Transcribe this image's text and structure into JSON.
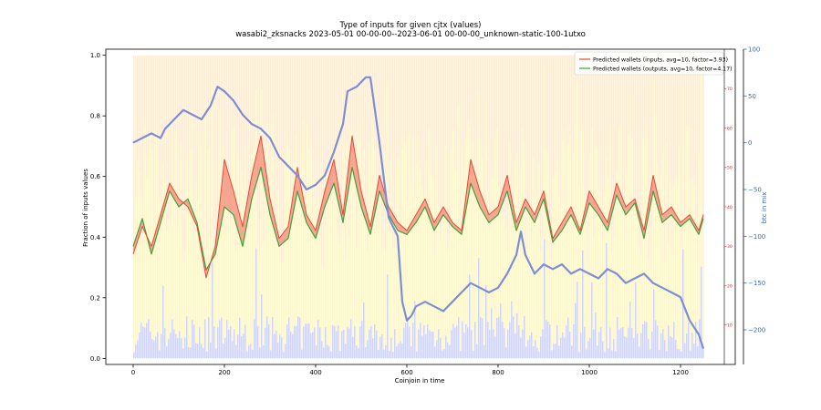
{
  "chart_data": {
    "type": "line",
    "title": "Type of inputs for given cjtx (values)",
    "subtitle": "wasabi2_zksnacks 2023-05-01 00-00-00--2023-06-01 00-00-00_unknown-static-100-1utxo",
    "xlabel": "Coinjoin in time",
    "ylabel": "Fraction of inputs values",
    "y2label": "btc in mix",
    "xlim": [
      -60,
      1320
    ],
    "ylim": [
      -0.02,
      1.02
    ],
    "y2lim": [
      -237,
      100
    ],
    "y3lim": [
      0,
      80
    ],
    "xticks": [
      0,
      200,
      400,
      600,
      800,
      1000,
      1200
    ],
    "yticks": [
      0.0,
      0.2,
      0.4,
      0.6,
      0.8,
      1.0
    ],
    "y2ticks": [
      100,
      50,
      0,
      -50,
      -100,
      -150,
      -200
    ],
    "y3ticks": [
      10,
      20,
      30,
      40,
      50,
      60,
      70
    ],
    "grid": false,
    "legend_position": "top-right",
    "colors": {
      "inputs": "#e8473b",
      "outputs": "#3fa13f",
      "btc": "#7b8fd6",
      "right_axis": "#3366cc",
      "red_axis": "#d62728",
      "bg_orange": "#fde0b8",
      "bg_yellow": "#fbf1b0",
      "bg_blue": "#c2c8f7"
    },
    "series": [
      {
        "name": "Predicted wallets (inputs, avg=10, factor=3.93)",
        "axis": "red",
        "x": [
          0,
          20,
          40,
          60,
          80,
          100,
          120,
          140,
          160,
          180,
          200,
          220,
          240,
          260,
          280,
          300,
          320,
          340,
          360,
          380,
          400,
          420,
          440,
          460,
          480,
          500,
          520,
          540,
          560,
          580,
          600,
          620,
          640,
          660,
          680,
          700,
          720,
          740,
          760,
          780,
          800,
          820,
          840,
          860,
          880,
          900,
          920,
          940,
          960,
          980,
          1000,
          1020,
          1040,
          1060,
          1080,
          1100,
          1120,
          1140,
          1160,
          1180,
          1200,
          1220,
          1240,
          1250
        ],
        "values": [
          28,
          35,
          30,
          38,
          46,
          42,
          40,
          35,
          22,
          30,
          52,
          44,
          35,
          48,
          58,
          42,
          32,
          35,
          50,
          38,
          34,
          44,
          52,
          38,
          58,
          44,
          35,
          48,
          40,
          36,
          34,
          38,
          42,
          36,
          40,
          36,
          34,
          52,
          44,
          38,
          40,
          48,
          36,
          42,
          38,
          44,
          32,
          36,
          40,
          34,
          44,
          40,
          36,
          46,
          40,
          42,
          34,
          48,
          38,
          40,
          36,
          38,
          34,
          38
        ]
      },
      {
        "name": "Predicted wallets (outputs, avg=10, factor=4.17)",
        "axis": "red",
        "x": [
          0,
          20,
          40,
          60,
          80,
          100,
          120,
          140,
          160,
          180,
          200,
          220,
          240,
          260,
          280,
          300,
          320,
          340,
          360,
          380,
          400,
          420,
          440,
          460,
          480,
          500,
          520,
          540,
          560,
          580,
          600,
          620,
          640,
          660,
          680,
          700,
          720,
          740,
          760,
          780,
          800,
          820,
          840,
          860,
          880,
          900,
          920,
          940,
          960,
          980,
          1000,
          1020,
          1040,
          1060,
          1080,
          1100,
          1120,
          1140,
          1160,
          1180,
          1200,
          1220,
          1240,
          1250
        ],
        "values": [
          30,
          37,
          28,
          36,
          44,
          40,
          42,
          36,
          24,
          28,
          40,
          38,
          30,
          42,
          50,
          38,
          30,
          32,
          44,
          36,
          32,
          40,
          46,
          36,
          50,
          40,
          33,
          44,
          38,
          34,
          33,
          36,
          40,
          34,
          38,
          35,
          33,
          46,
          40,
          36,
          38,
          44,
          34,
          40,
          36,
          42,
          31,
          34,
          38,
          33,
          41,
          38,
          34,
          43,
          38,
          41,
          32,
          44,
          36,
          38,
          35,
          37,
          33,
          37
        ]
      },
      {
        "name": "btc in mix",
        "axis": "right",
        "x": [
          0,
          20,
          40,
          60,
          70,
          90,
          110,
          130,
          150,
          170,
          185,
          200,
          220,
          240,
          260,
          280,
          300,
          320,
          340,
          360,
          380,
          400,
          420,
          440,
          460,
          470,
          490,
          510,
          520,
          540,
          560,
          570,
          580,
          590,
          600,
          610,
          620,
          640,
          660,
          680,
          700,
          720,
          740,
          760,
          780,
          800,
          820,
          840,
          850,
          860,
          880,
          900,
          920,
          940,
          960,
          980,
          1000,
          1020,
          1040,
          1060,
          1080,
          1100,
          1120,
          1140,
          1160,
          1180,
          1200,
          1220,
          1240,
          1250
        ],
        "values": [
          0,
          5,
          10,
          5,
          15,
          25,
          35,
          30,
          25,
          40,
          60,
          55,
          45,
          30,
          20,
          15,
          5,
          -15,
          -25,
          -35,
          -50,
          -45,
          -35,
          -10,
          20,
          55,
          60,
          70,
          70,
          0,
          -80,
          -90,
          -100,
          -170,
          -190,
          -185,
          -175,
          -170,
          -175,
          -180,
          -170,
          -160,
          -150,
          -155,
          -160,
          -155,
          -140,
          -120,
          -95,
          -120,
          -140,
          -130,
          -135,
          -130,
          -140,
          -135,
          -140,
          -145,
          -135,
          -140,
          -150,
          -145,
          -140,
          -150,
          -155,
          -160,
          -165,
          -190,
          -205,
          -220
        ]
      }
    ]
  }
}
